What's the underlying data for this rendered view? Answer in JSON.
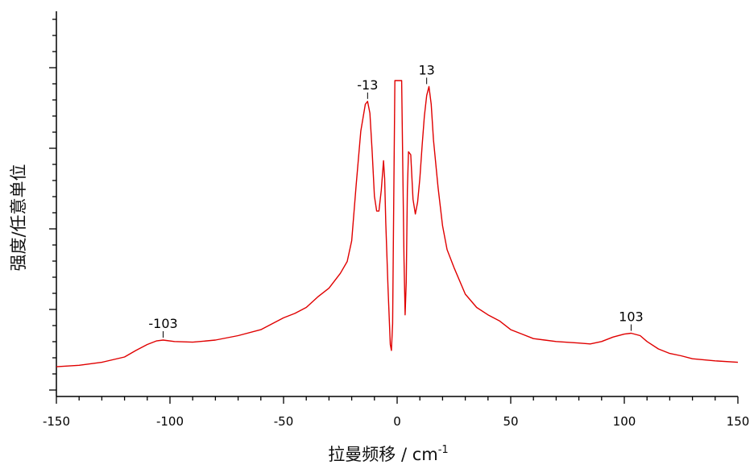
{
  "chart_data": {
    "type": "line",
    "title": "",
    "xlabel": "拉曼频移 / cm",
    "xlabel_sup": "-1",
    "ylabel": "强度/任意单位",
    "xlim": [
      -150,
      150
    ],
    "ylim": [
      0,
      10
    ],
    "x_ticks": [
      -150,
      -100,
      -50,
      0,
      50,
      100,
      150
    ],
    "grid": false,
    "legend": "none",
    "series": [
      {
        "color": "#e00000",
        "x": [
          -150,
          -140,
          -130,
          -120,
          -115,
          -110,
          -106,
          -103,
          -98,
          -90,
          -80,
          -70,
          -60,
          -50,
          -45,
          -40,
          -35,
          -30,
          -25,
          -22,
          -20,
          -18,
          -16,
          -14,
          -13,
          -12,
          -11,
          -10,
          -9,
          -8,
          -7,
          -6,
          -5.5,
          -5,
          -4,
          -3,
          -2.5,
          -2,
          -1.5,
          -1,
          0,
          1,
          2,
          3,
          3.5,
          4,
          4.5,
          5,
          6,
          7,
          8,
          9,
          10,
          11,
          12,
          13,
          14,
          15,
          16,
          18,
          20,
          22,
          25,
          30,
          35,
          40,
          45,
          50,
          55,
          60,
          65,
          70,
          80,
          85,
          90,
          95,
          100,
          103,
          107,
          110,
          115,
          120,
          125,
          130,
          140,
          150
        ],
        "y": [
          0.35,
          0.4,
          0.5,
          0.68,
          0.9,
          1.1,
          1.22,
          1.25,
          1.2,
          1.18,
          1.25,
          1.4,
          1.6,
          2.0,
          2.15,
          2.35,
          2.7,
          3.0,
          3.5,
          3.9,
          4.6,
          6.5,
          8.3,
          9.2,
          9.3,
          8.9,
          7.6,
          6.1,
          5.6,
          5.6,
          6.3,
          7.3,
          6.7,
          5.2,
          3.0,
          1.1,
          0.9,
          1.8,
          6.0,
          10.0,
          10.0,
          10.0,
          10.0,
          4.0,
          2.1,
          3.2,
          6.3,
          7.6,
          7.5,
          6.0,
          5.5,
          5.9,
          6.7,
          7.8,
          8.8,
          9.5,
          9.8,
          9.2,
          8.0,
          6.4,
          5.1,
          4.3,
          3.7,
          2.8,
          2.35,
          2.1,
          1.9,
          1.6,
          1.45,
          1.3,
          1.25,
          1.2,
          1.15,
          1.12,
          1.2,
          1.35,
          1.45,
          1.48,
          1.4,
          1.2,
          0.95,
          0.8,
          0.72,
          0.62,
          0.55,
          0.5
        ]
      }
    ],
    "annotations": [
      {
        "x": -103,
        "y": 1.25,
        "text": "-103"
      },
      {
        "x": -13,
        "y": 9.3,
        "text": "-13"
      },
      {
        "x": 13,
        "y": 9.8,
        "text": "13"
      },
      {
        "x": 103,
        "y": 1.48,
        "text": "103"
      }
    ]
  }
}
